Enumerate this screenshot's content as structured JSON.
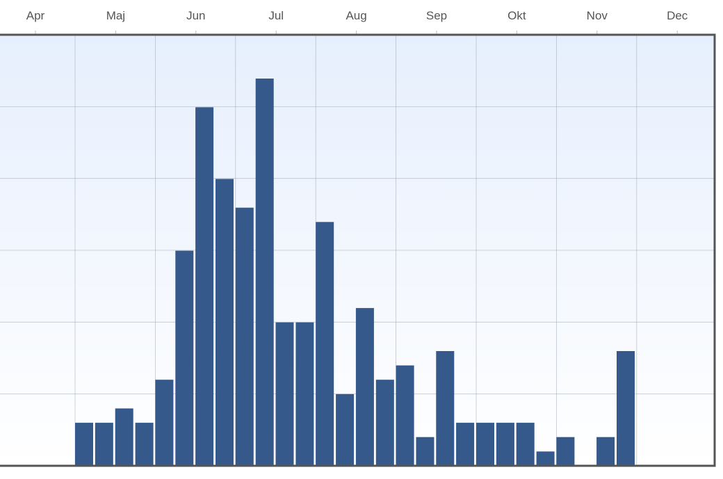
{
  "chart_data": {
    "type": "bar",
    "title": "",
    "xlabel": "",
    "ylabel": "",
    "x_axis_position": "top",
    "month_labels": [
      "Apr",
      "Maj",
      "Jun",
      "Jul",
      "Aug",
      "Sep",
      "Okt",
      "Nov",
      "Dec"
    ],
    "ylim": [
      0,
      27
    ],
    "grid": true,
    "bar_color": "#35598a",
    "series": [
      {
        "values": [
          3,
          3,
          4,
          3,
          6,
          15,
          25,
          20,
          18,
          27,
          10,
          10,
          17,
          5,
          11,
          6,
          7,
          2,
          8,
          3,
          3,
          3,
          3,
          1,
          2,
          0,
          2,
          8
        ]
      }
    ]
  },
  "colors": {
    "bar": "#35598a",
    "grid": "#9aa3ad",
    "frame": "#555555",
    "background_top": "#e6effd",
    "background_bottom": "#ffffff",
    "axis_text": "#555555"
  }
}
